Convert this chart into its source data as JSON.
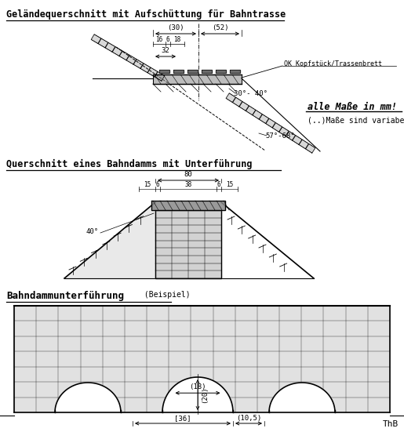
{
  "title1": "Geländequerschnitt mit Aufschüttung für Bahntrasse",
  "title2": "Querschnitt eines Bahndamms mit Unterführung",
  "title3": "Bahndammunterführung",
  "title3b": " (Beispiel)",
  "note1": "alle Maße in mm!",
  "note2": "(..)Maße sind variabel",
  "label_ok": "OK Kopfstück/Trassenbrett",
  "dim30": "(30)",
  "dim52": "(52)",
  "dim16": "16",
  "dim6a": "6",
  "dim18": "18",
  "dim32": "32",
  "dim_angle1": "30°- 40°",
  "dim_angle2": "57°-68°",
  "dim80": "80",
  "dim38": "38",
  "dim15a": "15",
  "dim6b": "6",
  "dim15b": "15",
  "dim40deg": "40°",
  "dim_arch": "(18)",
  "dim20": "(20)",
  "dim36": "[36]",
  "dim10": "(10,5)",
  "ThB": "ThB",
  "bg": "#ffffff",
  "fig_w": 5.15,
  "fig_h": 5.51,
  "dpi": 100
}
